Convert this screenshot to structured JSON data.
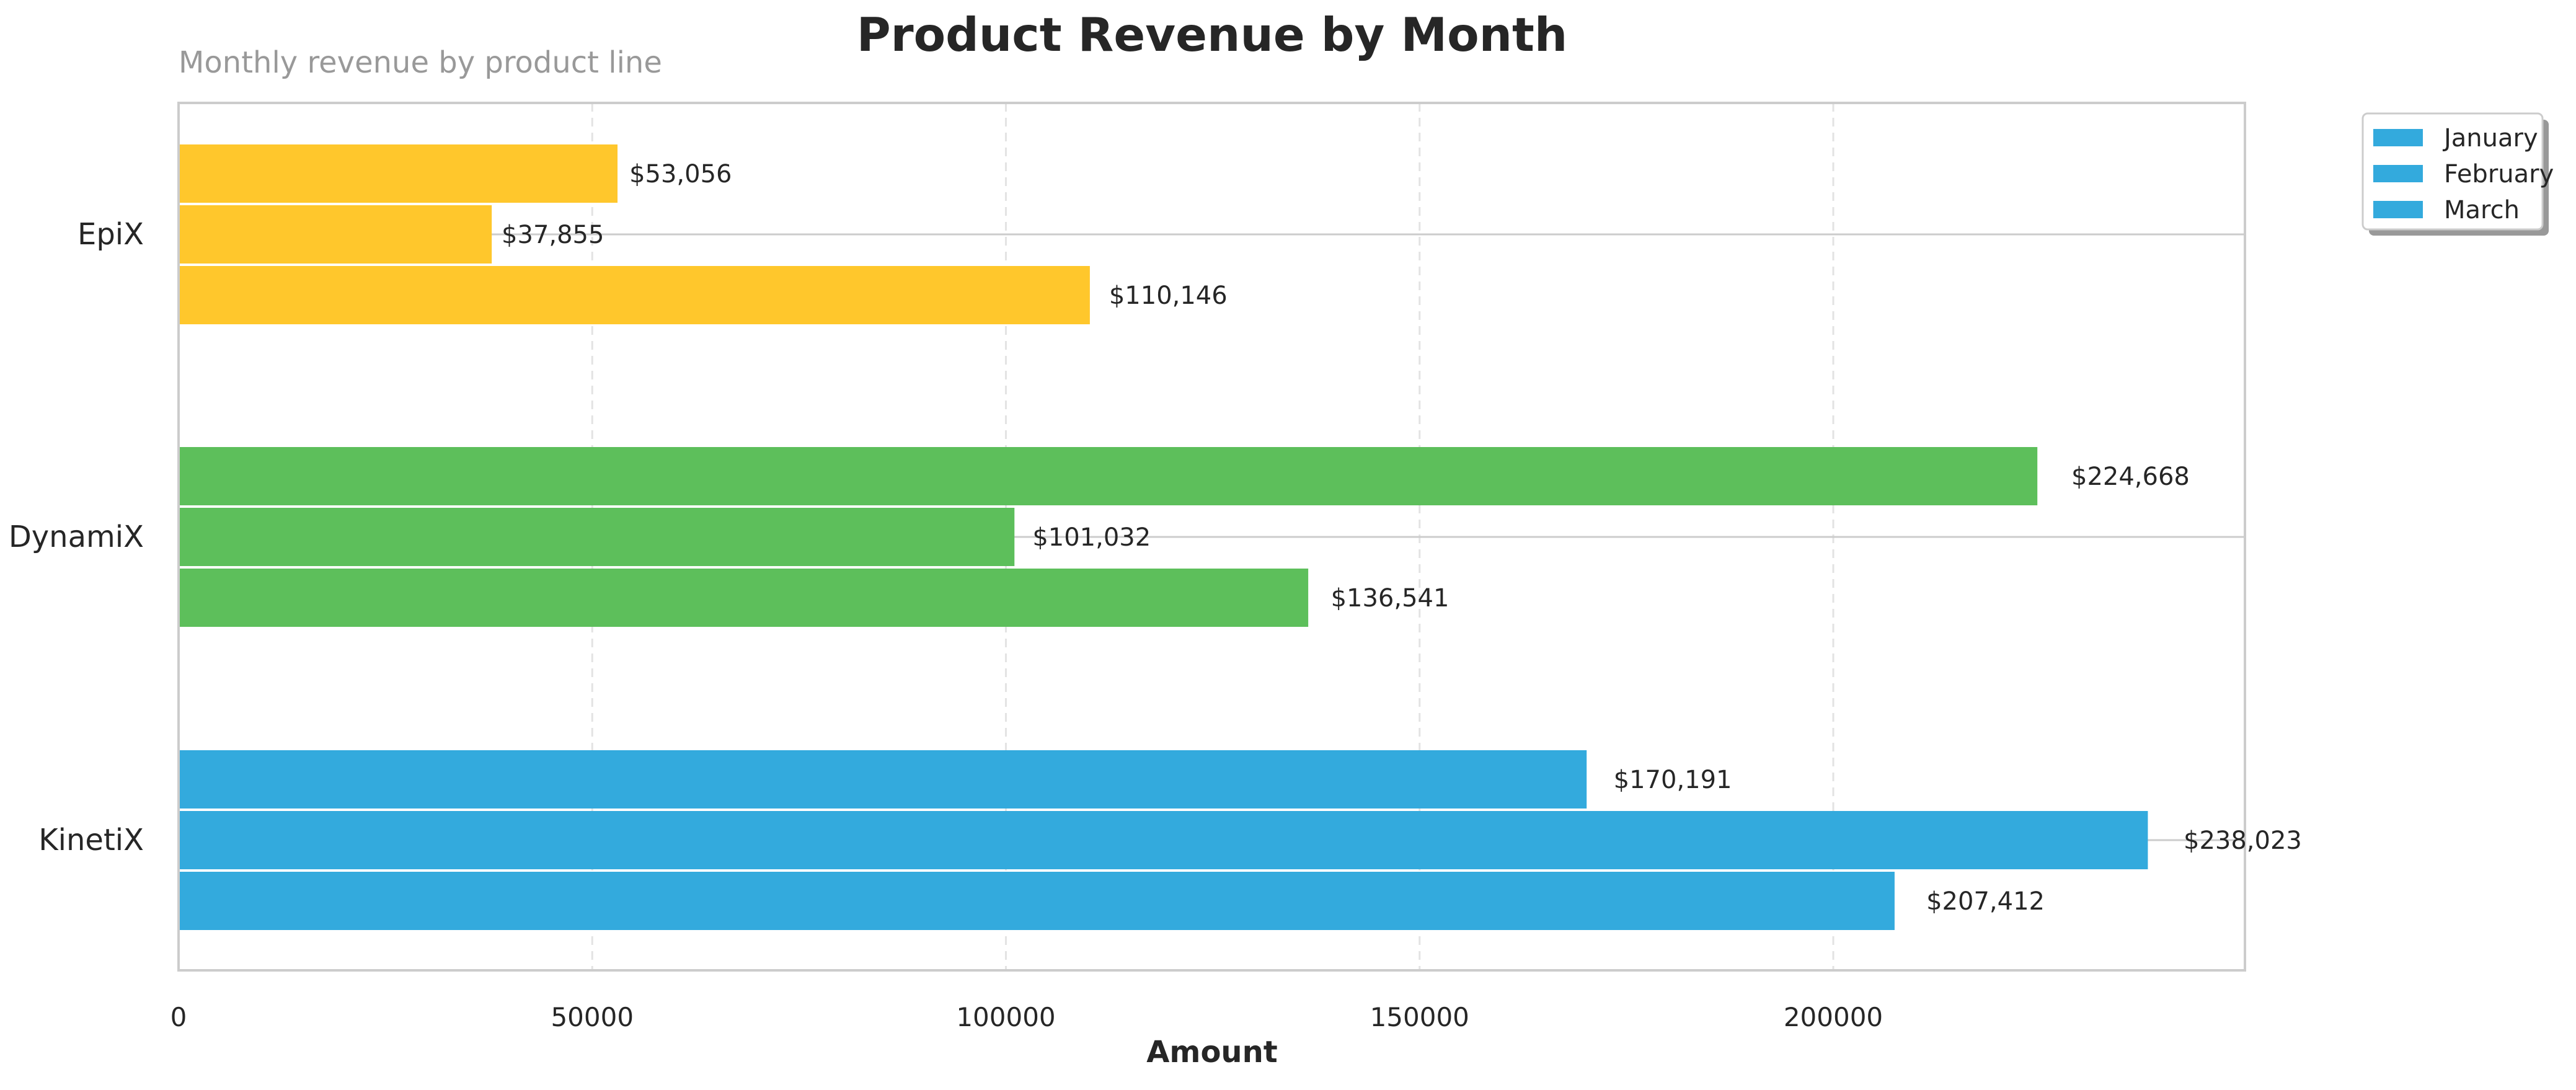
{
  "chart_data": {
    "type": "bar",
    "orientation": "horizontal",
    "title": "Product Revenue by Month",
    "subtitle": "Monthly revenue by product line",
    "xlabel": "Amount",
    "ylabel": "",
    "categories": [
      "EpiX",
      "DynamiX",
      "KinetiX"
    ],
    "series": [
      {
        "name": "January",
        "values": [
          53056,
          224668,
          170191
        ],
        "labels": [
          "$53,056",
          "$224,668",
          "$170,191"
        ]
      },
      {
        "name": "February",
        "values": [
          37855,
          101032,
          238023
        ],
        "labels": [
          "$37,855",
          "$101,032",
          "$238,023"
        ]
      },
      {
        "name": "March",
        "values": [
          110146,
          136541,
          207412
        ],
        "labels": [
          "$110,146",
          "$136,541",
          "$207,412"
        ]
      }
    ],
    "category_colors": {
      "EpiX": "#ffc72c",
      "DynamiX": "#5dbf5b",
      "KinetiX": "#33aadd"
    },
    "legend_color": "#33aadd",
    "xlim": [
      0,
      250000
    ],
    "xticks": [
      0,
      50000,
      100000,
      150000,
      200000
    ],
    "xtick_labels": [
      "0",
      "50000",
      "100000",
      "150000",
      "200000"
    ],
    "grid": "x-dashed",
    "legend_position": "outside-top-right"
  }
}
